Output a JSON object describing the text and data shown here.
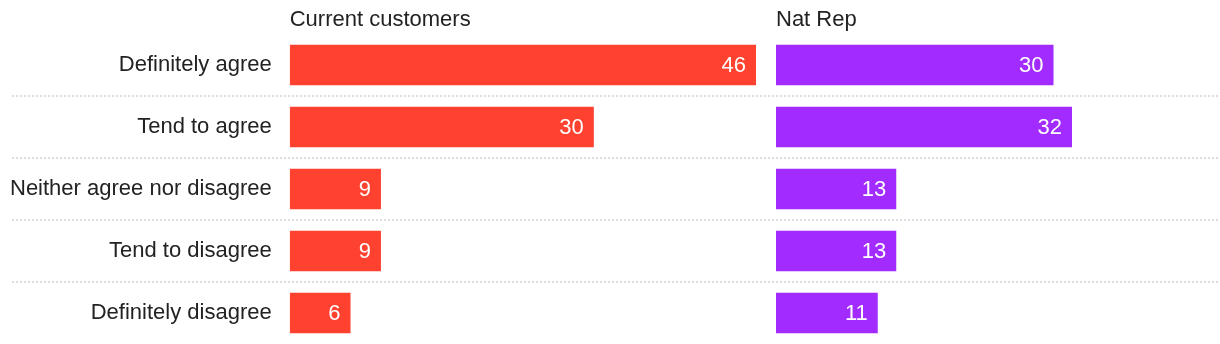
{
  "chart_data": [
    {
      "type": "bar",
      "orientation": "horizontal",
      "title": "Current customers",
      "categories": [
        "Definitely agree",
        "Tend to agree",
        "Neither agree nor disagree",
        "Tend to disagree",
        "Definitely disagree"
      ],
      "values": [
        46,
        30,
        9,
        9,
        6
      ],
      "color": "#ff4230",
      "xlim": [
        0,
        46
      ],
      "data_labels": true,
      "grid": "y",
      "tick_labels": "y"
    },
    {
      "type": "bar",
      "orientation": "horizontal",
      "title": "Nat Rep",
      "categories": [
        null,
        null,
        null,
        null,
        null
      ],
      "values": [
        30,
        32,
        13,
        13,
        11
      ],
      "color": "#a22bff",
      "xlim": [
        0,
        32
      ],
      "data_labels": true,
      "grid": "y",
      "tick_labels": false
    }
  ]
}
